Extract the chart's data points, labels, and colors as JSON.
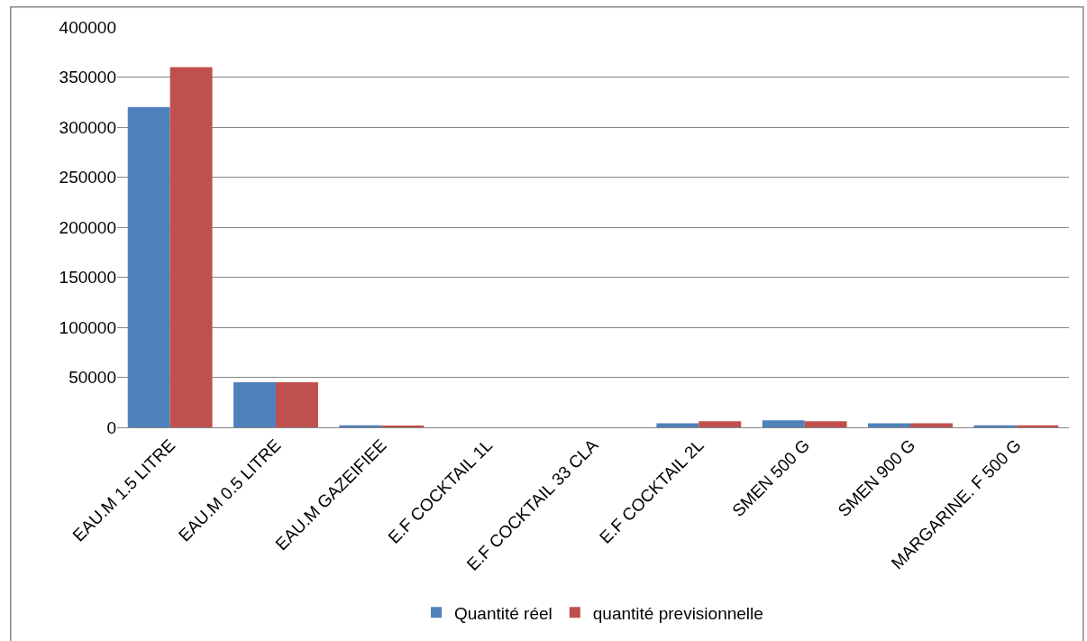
{
  "chart_data": {
    "type": "bar",
    "categories": [
      "EAU.M 1.5 LITRE",
      "EAU.M 0.5 LITRE",
      "EAU.M GAZEIFIEE",
      "E.F COCKTAIL 1L",
      "E.F COCKTAIL 33 CLA",
      "E.F COCKTAIL 2L",
      "SMEN 500 G",
      "SMEN 900 G",
      "MARGARINE. F 500 G"
    ],
    "series": [
      {
        "name": "Quantité réel",
        "color": "#4f81bd",
        "values": [
          320000,
          45000,
          2000,
          0,
          0,
          4000,
          7000,
          4000,
          2000
        ]
      },
      {
        "name": "quantité previsionnelle",
        "color": "#c0504d",
        "values": [
          360000,
          45000,
          1000,
          0,
          0,
          6000,
          6000,
          4000,
          2000
        ]
      }
    ],
    "ylim": [
      0,
      400000
    ],
    "yticks": [
      0,
      50000,
      100000,
      150000,
      200000,
      250000,
      300000,
      350000,
      400000
    ],
    "grid": "y",
    "legend": "bottom"
  }
}
